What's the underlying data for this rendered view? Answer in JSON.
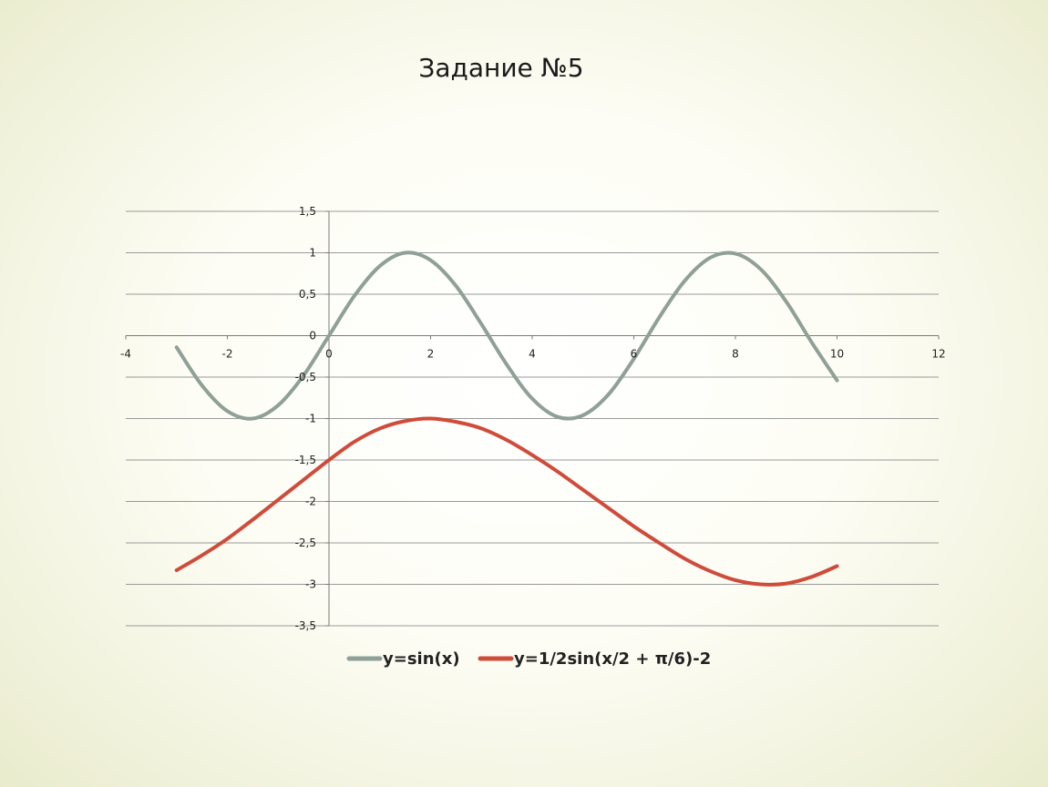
{
  "slide": {
    "title": "Задание №5"
  },
  "chart_data": {
    "type": "line",
    "title": "",
    "xlabel": "",
    "ylabel": "",
    "xlim": [
      -4,
      12
    ],
    "ylim": [
      -3.5,
      1.5
    ],
    "x_ticks": [
      -4,
      -2,
      0,
      2,
      4,
      6,
      8,
      10,
      12
    ],
    "x_tick_labels": [
      "-4",
      "-2",
      "0",
      "2",
      "4",
      "6",
      "8",
      "10",
      "12"
    ],
    "y_ticks": [
      1.5,
      1,
      0.5,
      0,
      -0.5,
      -1,
      -1.5,
      -2,
      -2.5,
      -3,
      -3.5
    ],
    "y_tick_labels": [
      "1,5",
      "1",
      "0,5",
      "0",
      "-0,5",
      "-1",
      "-1,5",
      "-2",
      "-2,5",
      "-3",
      "-3,5"
    ],
    "grid": "horizontal",
    "legend": "bottom",
    "series": [
      {
        "name": "y=sin(x)",
        "color": "#8fa097",
        "x": [
          -3,
          -2.5,
          -2,
          -1.5,
          -1,
          -0.5,
          0,
          0.5,
          1,
          1.5,
          2,
          2.5,
          3,
          3.5,
          4,
          4.5,
          5,
          5.5,
          6,
          6.5,
          7,
          7.5,
          8,
          8.5,
          9,
          9.5,
          10
        ],
        "y": [
          -0.14,
          -0.6,
          -0.91,
          -1.0,
          -0.84,
          -0.48,
          0,
          0.48,
          0.84,
          1.0,
          0.91,
          0.6,
          0.14,
          -0.35,
          -0.76,
          -0.98,
          -0.96,
          -0.71,
          -0.28,
          0.22,
          0.66,
          0.94,
          0.99,
          0.8,
          0.41,
          -0.08,
          -0.54
        ]
      },
      {
        "name": "y=1/2sin(x/2 + π/6)-2",
        "color": "#cf4b3a",
        "x": [
          -3,
          -2.5,
          -2,
          -1.5,
          -1,
          -0.5,
          0,
          0.5,
          1,
          1.5,
          2,
          2.5,
          3,
          3.5,
          4,
          4.5,
          5,
          5.5,
          6,
          6.5,
          7,
          7.5,
          8,
          8.5,
          9,
          9.5,
          10
        ],
        "y": [
          -2.83,
          -2.65,
          -2.45,
          -2.22,
          -1.98,
          -1.74,
          -1.5,
          -1.28,
          -1.12,
          -1.03,
          -1.0,
          -1.04,
          -1.12,
          -1.26,
          -1.44,
          -1.64,
          -1.86,
          -2.08,
          -2.3,
          -2.5,
          -2.69,
          -2.84,
          -2.95,
          -3.0,
          -2.99,
          -2.91,
          -2.78
        ]
      }
    ]
  }
}
